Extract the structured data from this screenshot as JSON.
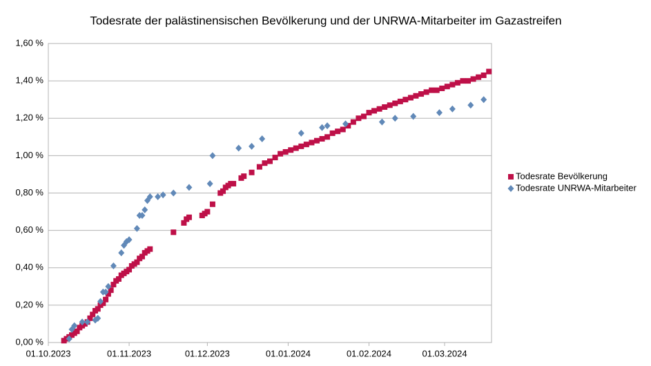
{
  "chart_data": {
    "type": "scatter",
    "title": "Todesrate der palästinensischen Bevölkerung und der UNRWA-Mitarbeiter im Gazastreifen",
    "xlim": [
      "2023-10-01",
      "2024-03-19"
    ],
    "xticks": [
      {
        "value": "2023-10-01",
        "label": "01.10.2023"
      },
      {
        "value": "2023-11-01",
        "label": "01.11.2023"
      },
      {
        "value": "2023-12-01",
        "label": "01.12.2023"
      },
      {
        "value": "2024-01-01",
        "label": "01.01.2024"
      },
      {
        "value": "2024-02-01",
        "label": "01.02.2024"
      },
      {
        "value": "2024-03-01",
        "label": "01.03.2024"
      }
    ],
    "ylim": [
      0,
      1.6
    ],
    "yticks": [
      {
        "value": 0,
        "label": "0,00 %"
      },
      {
        "value": 0.2,
        "label": "0,20 %"
      },
      {
        "value": 0.4,
        "label": "0,40 %"
      },
      {
        "value": 0.6,
        "label": "0,60 %"
      },
      {
        "value": 0.8,
        "label": "0,80 %"
      },
      {
        "value": 1.0,
        "label": "1,00 %"
      },
      {
        "value": 1.2,
        "label": "1,20 %"
      },
      {
        "value": 1.4,
        "label": "1,40 %"
      },
      {
        "value": 1.6,
        "label": "1,60 %"
      }
    ],
    "grid": true,
    "legend": "right",
    "series": [
      {
        "name": "Todesrate Bevölkerung",
        "color": "#be1048",
        "marker": "square",
        "x": [
          "2023-10-07",
          "2023-10-08",
          "2023-10-09",
          "2023-10-10",
          "2023-10-11",
          "2023-10-12",
          "2023-10-13",
          "2023-10-14",
          "2023-10-15",
          "2023-10-16",
          "2023-10-17",
          "2023-10-18",
          "2023-10-19",
          "2023-10-20",
          "2023-10-21",
          "2023-10-22",
          "2023-10-23",
          "2023-10-24",
          "2023-10-25",
          "2023-10-26",
          "2023-10-27",
          "2023-10-28",
          "2023-10-29",
          "2023-10-30",
          "2023-10-31",
          "2023-11-01",
          "2023-11-02",
          "2023-11-03",
          "2023-11-04",
          "2023-11-05",
          "2023-11-06",
          "2023-11-07",
          "2023-11-08",
          "2023-11-09",
          "2023-11-18",
          "2023-11-22",
          "2023-11-23",
          "2023-11-24",
          "2023-11-29",
          "2023-11-30",
          "2023-12-01",
          "2023-12-03",
          "2023-12-06",
          "2023-12-07",
          "2023-12-08",
          "2023-12-09",
          "2023-12-10",
          "2023-12-11",
          "2023-12-14",
          "2023-12-15",
          "2023-12-18",
          "2023-12-21",
          "2023-12-23",
          "2023-12-25",
          "2023-12-27",
          "2023-12-29",
          "2023-12-31",
          "2024-01-02",
          "2024-01-04",
          "2024-01-06",
          "2024-01-08",
          "2024-01-10",
          "2024-01-12",
          "2024-01-14",
          "2024-01-16",
          "2024-01-18",
          "2024-01-20",
          "2024-01-22",
          "2024-01-24",
          "2024-01-26",
          "2024-01-28",
          "2024-01-30",
          "2024-02-01",
          "2024-02-03",
          "2024-02-05",
          "2024-02-07",
          "2024-02-09",
          "2024-02-11",
          "2024-02-13",
          "2024-02-15",
          "2024-02-17",
          "2024-02-19",
          "2024-02-21",
          "2024-02-23",
          "2024-02-25",
          "2024-02-27",
          "2024-02-29",
          "2024-03-02",
          "2024-03-04",
          "2024-03-06",
          "2024-03-08",
          "2024-03-10",
          "2024-03-12",
          "2024-03-14",
          "2024-03-16",
          "2024-03-18"
        ],
        "values": [
          0.01,
          0.02,
          0.03,
          0.04,
          0.05,
          0.06,
          0.08,
          0.09,
          0.1,
          0.11,
          0.13,
          0.15,
          0.17,
          0.18,
          0.2,
          0.21,
          0.23,
          0.26,
          0.28,
          0.31,
          0.33,
          0.34,
          0.36,
          0.37,
          0.38,
          0.39,
          0.41,
          0.42,
          0.43,
          0.45,
          0.46,
          0.48,
          0.49,
          0.5,
          0.59,
          0.64,
          0.66,
          0.67,
          0.68,
          0.69,
          0.7,
          0.74,
          0.8,
          0.81,
          0.83,
          0.84,
          0.85,
          0.85,
          0.88,
          0.89,
          0.91,
          0.94,
          0.96,
          0.97,
          0.99,
          1.01,
          1.02,
          1.03,
          1.04,
          1.05,
          1.06,
          1.07,
          1.08,
          1.09,
          1.1,
          1.12,
          1.13,
          1.14,
          1.16,
          1.18,
          1.2,
          1.21,
          1.23,
          1.24,
          1.25,
          1.26,
          1.27,
          1.28,
          1.29,
          1.3,
          1.31,
          1.32,
          1.33,
          1.34,
          1.35,
          1.35,
          1.36,
          1.37,
          1.38,
          1.39,
          1.4,
          1.4,
          1.41,
          1.42,
          1.43,
          1.45
        ]
      },
      {
        "name": "Todesrate UNRWA-Mitarbeiter",
        "color": "#6189b8",
        "marker": "diamond",
        "x": [
          "2023-10-09",
          "2023-10-10",
          "2023-10-11",
          "2023-10-14",
          "2023-10-16",
          "2023-10-19",
          "2023-10-20",
          "2023-10-21",
          "2023-10-22",
          "2023-10-23",
          "2023-10-24",
          "2023-10-26",
          "2023-10-29",
          "2023-10-30",
          "2023-10-31",
          "2023-11-01",
          "2023-11-04",
          "2023-11-05",
          "2023-11-06",
          "2023-11-07",
          "2023-11-08",
          "2023-11-09",
          "2023-11-12",
          "2023-11-14",
          "2023-11-18",
          "2023-11-24",
          "2023-12-02",
          "2023-12-03",
          "2023-12-13",
          "2023-12-18",
          "2023-12-22",
          "2024-01-06",
          "2024-01-14",
          "2024-01-16",
          "2024-01-23",
          "2024-02-06",
          "2024-02-11",
          "2024-02-18",
          "2024-02-28",
          "2024-03-04",
          "2024-03-11",
          "2024-03-16"
        ],
        "values": [
          0.02,
          0.07,
          0.09,
          0.11,
          0.11,
          0.12,
          0.13,
          0.22,
          0.27,
          0.27,
          0.3,
          0.41,
          0.48,
          0.52,
          0.54,
          0.55,
          0.61,
          0.68,
          0.68,
          0.71,
          0.76,
          0.78,
          0.78,
          0.79,
          0.8,
          0.83,
          0.85,
          1.0,
          1.04,
          1.05,
          1.09,
          1.12,
          1.15,
          1.16,
          1.17,
          1.18,
          1.2,
          1.21,
          1.23,
          1.25,
          1.27,
          1.3
        ]
      }
    ]
  }
}
